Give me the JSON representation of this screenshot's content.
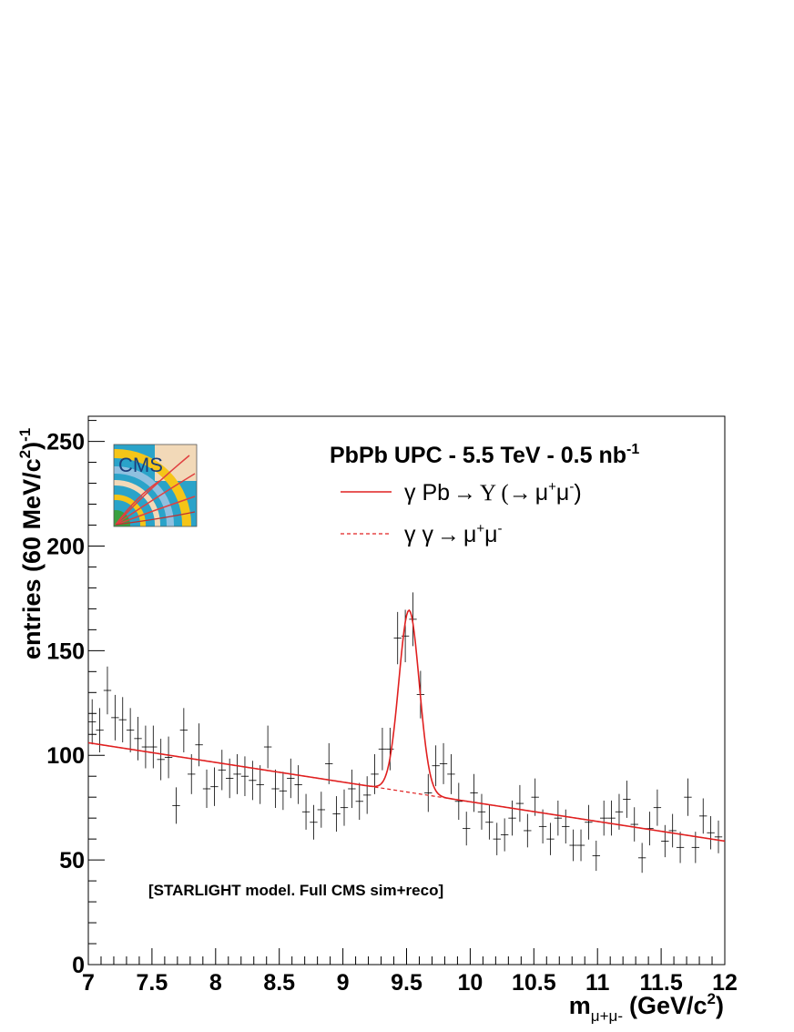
{
  "chart_data": {
    "type": "scatter",
    "title": "PbPb UPC - 5.5 TeV - 0.5 nb",
    "title_sup": "-1",
    "xlabel": "m",
    "xlabel_sub": "μ+μ-",
    "xlabel_unit": "(GeV/c",
    "xlabel_unit_sup": "2",
    "xlabel_unit_end": ")",
    "ylabel": "entries (60 MeV/c",
    "ylabel_sup1": "2",
    "ylabel_mid": ")",
    "ylabel_sup2": "-1",
    "xlim": [
      7,
      12
    ],
    "ylim": [
      0,
      262
    ],
    "x_ticks": [
      "7",
      "7.5",
      "8",
      "8.5",
      "9",
      "9.5",
      "10",
      "10.5",
      "11",
      "11.5",
      "12"
    ],
    "y_ticks": [
      "0",
      "50",
      "100",
      "150",
      "200",
      "250"
    ],
    "grid": false,
    "legend_position": "top-right",
    "annotation": "[STARLIGHT model. Full CMS sim+reco]",
    "logo_text": "CMS",
    "colors": {
      "fit": "#e02020",
      "data": "#000000",
      "frame": "#000000"
    },
    "series": [
      {
        "name": "γ Pb → Υ (→ μ⁺μ⁻)",
        "legend_parts": [
          "γ Pb",
          "→",
          "Υ (",
          "→",
          "μ",
          "+",
          "μ",
          "-",
          ")"
        ],
        "style": "solid",
        "color": "#e02020",
        "fit": {
          "bg_a": 106,
          "bg_b": -9.4,
          "bg_x0": 7,
          "peak_amp": 87,
          "peak_mean": 9.52,
          "peak_sigma": 0.08
        }
      },
      {
        "name": "γ γ → μ⁺μ⁻",
        "legend_parts": [
          "γ γ",
          "→",
          "μ",
          "+",
          "μ",
          "-"
        ],
        "style": "dashed",
        "color": "#e02020"
      },
      {
        "name": "data",
        "style": "markers",
        "color": "#000000",
        "x": [
          7.03,
          7.09,
          7.15,
          7.21,
          7.27,
          7.33,
          7.39,
          7.45,
          7.51,
          7.57,
          7.63,
          7.69,
          7.75,
          7.81,
          7.87,
          7.93,
          7.99,
          8.05,
          8.11,
          8.17,
          8.23,
          8.29,
          8.35,
          8.41,
          8.47,
          8.53,
          8.59,
          8.65,
          8.71,
          8.77,
          8.83,
          8.89,
          8.95,
          9.01,
          9.07,
          9.13,
          9.19,
          9.25,
          9.31,
          9.37,
          9.43,
          9.49,
          9.55,
          9.61,
          9.67,
          9.73,
          9.79,
          9.85,
          9.91,
          9.97,
          10.03,
          10.09,
          10.15,
          10.21,
          10.27,
          10.33,
          10.39,
          10.45,
          10.51,
          10.57,
          10.63,
          10.69,
          10.75,
          10.81,
          10.87,
          10.93,
          10.99,
          11.05,
          11.11,
          11.17,
          11.23,
          11.29,
          11.35,
          11.41,
          11.47,
          11.53,
          11.59,
          11.65,
          11.71,
          11.77,
          11.83,
          11.89,
          11.95
        ],
        "y": [
          116,
          112,
          131,
          118,
          117,
          112,
          108,
          104,
          104,
          98,
          99,
          76,
          112,
          91,
          105,
          84,
          85,
          93,
          89,
          91,
          90,
          88,
          86,
          104,
          84,
          83,
          89,
          86,
          73,
          68,
          74,
          96,
          72,
          75,
          84,
          78,
          81,
          91,
          103,
          103,
          156,
          157,
          165,
          129,
          82,
          95,
          96,
          91,
          78,
          65,
          82,
          73,
          68,
          60,
          62,
          70,
          77,
          64,
          80,
          66,
          60,
          70,
          66,
          57,
          57,
          68,
          52,
          70,
          70,
          73,
          79,
          67,
          51,
          65,
          75,
          59,
          64,
          56,
          80,
          56,
          71,
          63,
          61
        ]
      }
    ]
  }
}
